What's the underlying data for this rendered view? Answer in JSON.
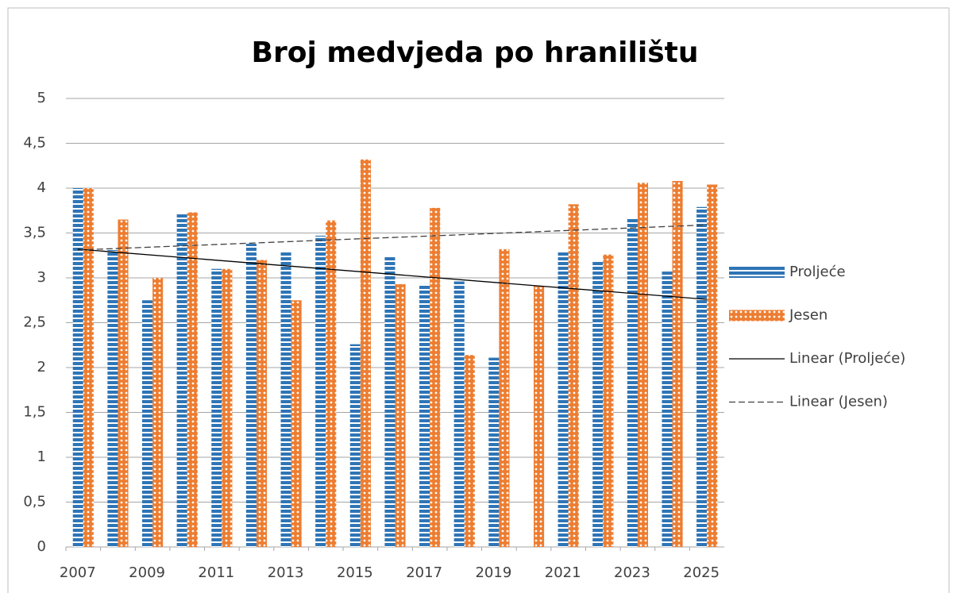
{
  "chart_data": {
    "type": "bar",
    "title": "Broj medvjeda po hranilištu",
    "categories": [
      "2007",
      null,
      "2009",
      null,
      "2011",
      null,
      "2013",
      null,
      "2015",
      null,
      "2017",
      null,
      "2019",
      null,
      "2021",
      null,
      "2023",
      null,
      "2025"
    ],
    "series": [
      {
        "name": "Proljeće",
        "color": "#2e75b6",
        "pattern": "stripes",
        "values": [
          4.0,
          3.31,
          2.75,
          3.71,
          3.1,
          3.38,
          3.3,
          3.47,
          2.26,
          3.24,
          2.93,
          2.96,
          2.11,
          null,
          3.29,
          3.18,
          3.66,
          3.07,
          3.79
        ]
      },
      {
        "name": "Jesen",
        "color": "#ed7d31",
        "pattern": "dots",
        "values": [
          4.0,
          3.65,
          3.0,
          3.73,
          3.1,
          3.2,
          2.75,
          3.64,
          4.32,
          2.93,
          3.78,
          2.14,
          3.32,
          2.91,
          3.82,
          3.26,
          4.06,
          4.08,
          4.04
        ]
      }
    ],
    "trendlines": [
      {
        "name": "Linear (Proljeće)",
        "color": "#000000",
        "dashed": false,
        "values": [
          3.32,
          2.76
        ]
      },
      {
        "name": "Linear (Jesen)",
        "color": "#404040",
        "dashed": true,
        "values": [
          3.31,
          3.59
        ]
      }
    ],
    "ylim": [
      0,
      5
    ],
    "yticks": [
      0,
      {
        "value": 0.5,
        "label": "0,5"
      },
      1,
      {
        "value": 1.5,
        "label": "1,5"
      },
      2,
      {
        "value": 2.5,
        "label": "2,5"
      },
      3,
      {
        "value": 3.5,
        "label": "3,5"
      },
      4,
      {
        "value": 4.5,
        "label": "4,5"
      },
      5
    ],
    "grid": true,
    "legend": "right"
  }
}
